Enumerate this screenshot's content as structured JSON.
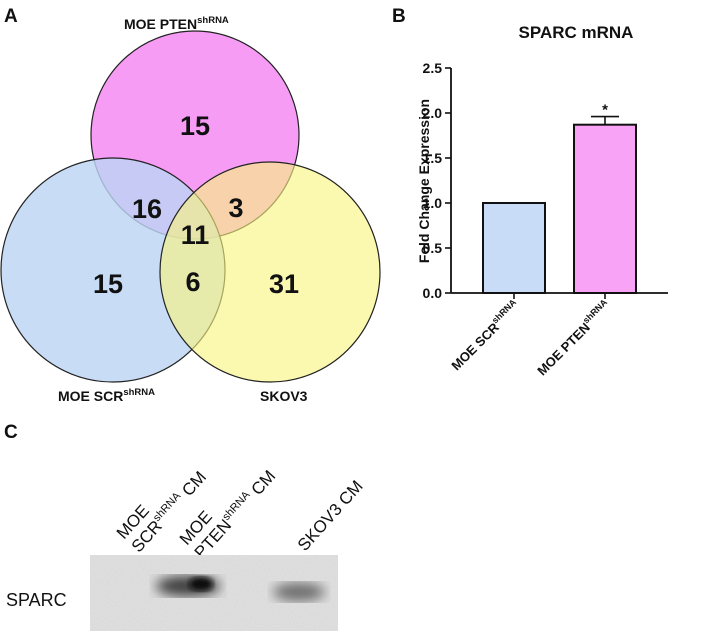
{
  "panel_a": {
    "letter": "A",
    "sets": {
      "pten": {
        "label": "MOE PTEN",
        "superscript": "shRNA",
        "color": "#f79cf5"
      },
      "scr": {
        "label": "MOE SCR",
        "superscript": "shRNA",
        "color": "#bcd4f4"
      },
      "skov3": {
        "label": "SKOV3",
        "color": "#f9f47e"
      }
    },
    "counts": {
      "pten_only": "15",
      "pten_scr": "16",
      "pten_skov3": "3",
      "all_three": "11",
      "scr_only": "15",
      "scr_skov3": "6",
      "skov3_only": "31"
    }
  },
  "panel_b": {
    "letter": "B",
    "chart_data": {
      "type": "bar",
      "title": "SPARC mRNA",
      "ylabel": "Fold Change Expression",
      "xlabel": "",
      "categories": [
        "MOE SCR",
        "MOE PTEN"
      ],
      "category_superscripts": [
        "shRNA",
        "shRNA"
      ],
      "values": [
        1.0,
        1.87
      ],
      "error": [
        0,
        0.09
      ],
      "significance": [
        "",
        "*"
      ],
      "colors": [
        "#c8dcf8",
        "#f9a3f7"
      ],
      "ylim": [
        0,
        2.5
      ],
      "yticks": [
        "0.0",
        "0.5",
        "1.0",
        "1.5",
        "2.0",
        "2.5"
      ],
      "grid": false
    }
  },
  "panel_c": {
    "letter": "C",
    "lanes": [
      {
        "line1": "MOE",
        "line2_main": "SCR",
        "line2_sup": "shRNA",
        "line2_tail": " CM"
      },
      {
        "line1": "MOE",
        "line2_main": "PTEN",
        "line2_sup": "shRNA",
        "line2_tail": " CM"
      },
      {
        "line1": "SKOV3 CM"
      }
    ],
    "band_label": "SPARC"
  }
}
